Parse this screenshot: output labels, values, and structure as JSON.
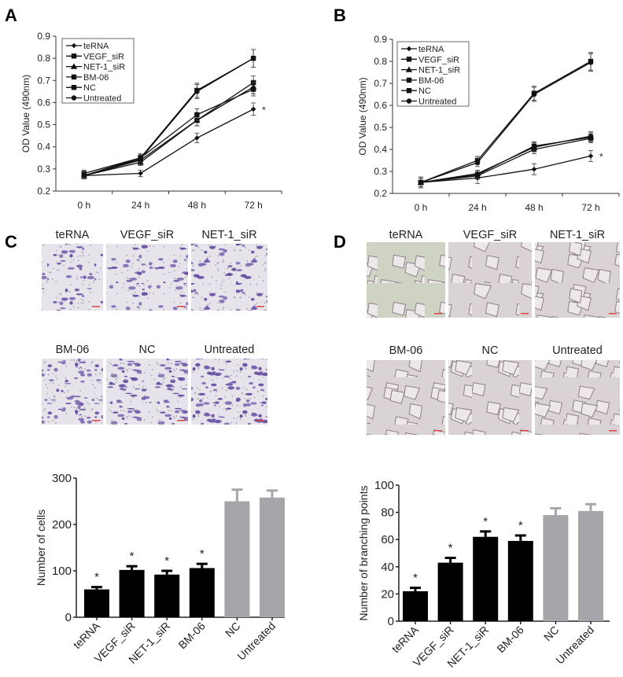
{
  "panels": {
    "A": {
      "label": "A"
    },
    "B": {
      "label": "B"
    },
    "C": {
      "label": "C",
      "image_labels": [
        "teRNA",
        "VEGF_siR",
        "NET-1_siR",
        "BM-06",
        "NC",
        "Untreated"
      ]
    },
    "D": {
      "label": "D",
      "image_labels": [
        "teRNA",
        "VEGF_siR",
        "NET-1_siR",
        "BM-06",
        "NC",
        "Untreated"
      ]
    }
  },
  "colors": {
    "treated_bar": "#000000",
    "control_bar": "#a6a5aa",
    "line": "#111111",
    "invasion_stain": "#5a3d9a",
    "tube_background": "#d9d5d6"
  },
  "chart_data": [
    {
      "type": "line",
      "panel": "A",
      "ylabel": "OD Value (490nm)",
      "xlabel": "",
      "categories": [
        "0 h",
        "24 h",
        "48 h",
        "72 h"
      ],
      "ylim": [
        0.2,
        0.9
      ],
      "yticks": [
        "0.2",
        "0.3",
        "0.4",
        "0.5",
        "0.6",
        "0.7",
        "0.8",
        "0.9"
      ],
      "legend": "top-left",
      "annotation": "*",
      "series": [
        {
          "name": "teRNA",
          "marker": "diamond",
          "values": [
            0.27,
            0.28,
            0.44,
            0.57
          ],
          "errors": [
            0.015,
            0.015,
            0.022,
            0.028
          ]
        },
        {
          "name": "VEGF_siR",
          "marker": "square",
          "values": [
            0.27,
            0.34,
            0.52,
            0.69
          ],
          "errors": [
            0.015,
            0.015,
            0.025,
            0.03
          ]
        },
        {
          "name": "NET-1_siR",
          "marker": "triangle",
          "values": [
            0.27,
            0.33,
            0.52,
            0.67
          ],
          "errors": [
            0.015,
            0.015,
            0.025,
            0.03
          ]
        },
        {
          "name": "BM-06",
          "marker": "square",
          "values": [
            0.28,
            0.35,
            0.545,
            0.66
          ],
          "errors": [
            0.015,
            0.018,
            0.027,
            0.03
          ]
        },
        {
          "name": "NC",
          "marker": "square",
          "values": [
            0.27,
            0.35,
            0.655,
            0.8
          ],
          "errors": [
            0.015,
            0.018,
            0.032,
            0.04
          ]
        },
        {
          "name": "Untreated",
          "marker": "circle",
          "values": [
            0.27,
            0.345,
            0.65,
            0.8
          ],
          "errors": [
            0.015,
            0.018,
            0.032,
            0.04
          ]
        }
      ]
    },
    {
      "type": "line",
      "panel": "B",
      "ylabel": "OD Value (490nm)",
      "xlabel": "",
      "categories": [
        "0 h",
        "24 h",
        "48 h",
        "72 h"
      ],
      "ylim": [
        0.2,
        0.9
      ],
      "yticks": [
        "0.2",
        "0.3",
        "0.4",
        "0.5",
        "0.6",
        "0.7",
        "0.8",
        "0.9"
      ],
      "legend": "top-left",
      "annotation": "*",
      "series": [
        {
          "name": "teRNA",
          "marker": "diamond",
          "values": [
            0.25,
            0.27,
            0.31,
            0.37
          ],
          "errors": [
            0.025,
            0.025,
            0.025,
            0.025
          ]
        },
        {
          "name": "VEGF_siR",
          "marker": "square",
          "values": [
            0.25,
            0.28,
            0.4,
            0.45
          ],
          "errors": [
            0.02,
            0.015,
            0.02,
            0.02
          ]
        },
        {
          "name": "NET-1_siR",
          "marker": "triangle",
          "values": [
            0.25,
            0.29,
            0.41,
            0.46
          ],
          "errors": [
            0.02,
            0.015,
            0.02,
            0.02
          ]
        },
        {
          "name": "BM-06",
          "marker": "square",
          "values": [
            0.25,
            0.285,
            0.415,
            0.455
          ],
          "errors": [
            0.02,
            0.015,
            0.02,
            0.02
          ]
        },
        {
          "name": "NC",
          "marker": "square",
          "values": [
            0.25,
            0.35,
            0.655,
            0.8
          ],
          "errors": [
            0.02,
            0.018,
            0.032,
            0.04
          ]
        },
        {
          "name": "Untreated",
          "marker": "circle",
          "values": [
            0.25,
            0.34,
            0.65,
            0.795
          ],
          "errors": [
            0.02,
            0.018,
            0.032,
            0.04
          ]
        }
      ]
    },
    {
      "type": "bar",
      "panel": "C",
      "ylabel": "Number of cells",
      "xlabel": "",
      "categories": [
        "teRNA",
        "VEGF_siR",
        "NET-1_siR",
        "BM-06",
        "NC",
        "Untreated"
      ],
      "values": [
        60,
        102,
        92,
        106,
        250,
        258
      ],
      "errors": [
        5,
        8,
        8,
        9,
        25,
        15
      ],
      "significant": [
        "*",
        "*",
        "*",
        "*",
        "",
        ""
      ],
      "group": [
        "treated",
        "treated",
        "treated",
        "treated",
        "control",
        "control"
      ],
      "ylim": [
        0,
        300
      ],
      "yticks": [
        "0",
        "100",
        "200",
        "300"
      ]
    },
    {
      "type": "bar",
      "panel": "D",
      "ylabel": "Number of branching points",
      "xlabel": "",
      "categories": [
        "teRNA",
        "VEGF_siR",
        "NET-1_siR",
        "BM-06",
        "NC",
        "Untreated"
      ],
      "values": [
        22,
        43,
        62,
        59,
        78,
        81
      ],
      "errors": [
        2.5,
        3.5,
        4,
        4,
        5,
        5
      ],
      "significant": [
        "*",
        "*",
        "*",
        "*",
        "",
        ""
      ],
      "group": [
        "treated",
        "treated",
        "treated",
        "treated",
        "control",
        "control"
      ],
      "ylim": [
        0,
        100
      ],
      "yticks": [
        "0",
        "20",
        "40",
        "60",
        "80",
        "100"
      ]
    }
  ]
}
